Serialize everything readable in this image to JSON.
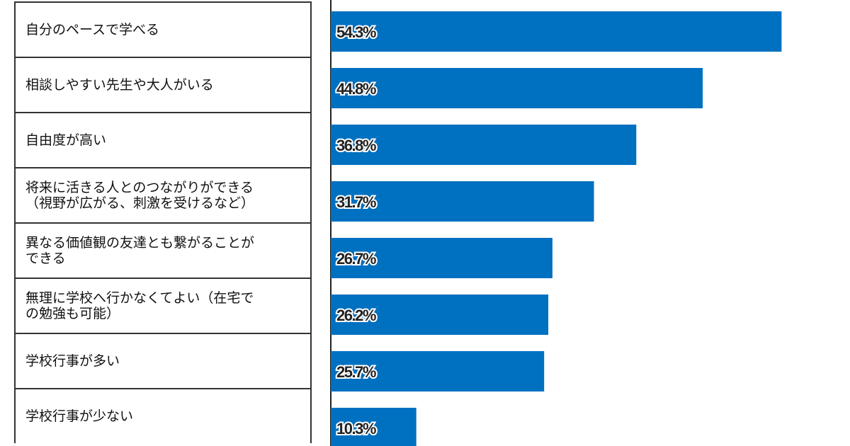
{
  "chart_data": {
    "type": "bar",
    "orientation": "horizontal",
    "categories": [
      "自分のペースで学べる",
      "相談しやすい先生や大人がいる",
      "自由度が高い",
      "将来に活きる人とのつながりができる\n（視野が広がる、刺激を受けるなど）",
      "異なる価値観の友達とも繋がることが\nできる",
      "無理に学校へ行かなくてよい（在宅で\nの勉強も可能）",
      "学校行事が多い",
      "学校行事が少ない"
    ],
    "values": [
      54.3,
      44.8,
      36.8,
      31.7,
      26.7,
      26.2,
      25.7,
      10.3
    ],
    "labels": [
      "54.3%",
      "44.8%",
      "36.8%",
      "31.7%",
      "26.7%",
      "26.2%",
      "25.7%",
      "10.3%"
    ],
    "unit": "%",
    "bar_color": "#0070c0",
    "grid": false
  }
}
